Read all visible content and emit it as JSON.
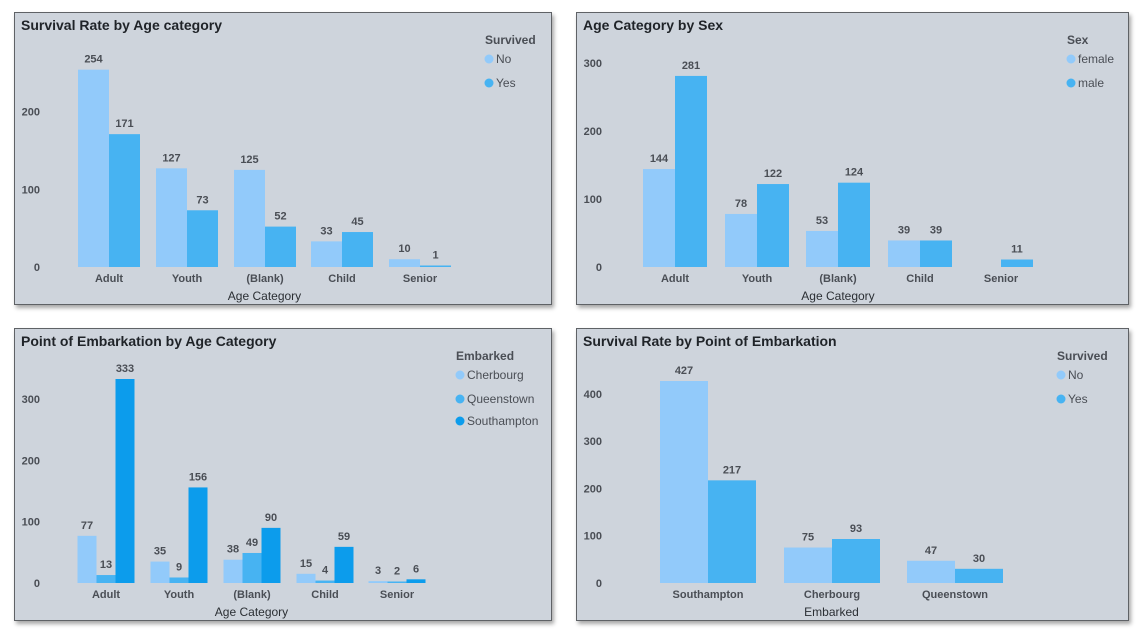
{
  "chart_data": [
    {
      "type": "bar",
      "title": "Survival Rate by Age category",
      "xlabel": "Age Category",
      "categories": [
        "Adult",
        "Youth",
        "(Blank)",
        "Child",
        "Senior"
      ],
      "series": [
        {
          "name": "No",
          "values": [
            254,
            127,
            125,
            33,
            10
          ],
          "color": "#92cafa"
        },
        {
          "name": "Yes",
          "values": [
            171,
            73,
            52,
            45,
            1
          ],
          "color": "#47b3f2"
        }
      ],
      "legend_title": "Survived",
      "yticks": [
        0,
        100,
        200
      ],
      "ylim": [
        0,
        260
      ],
      "legend": "top-right"
    },
    {
      "type": "bar",
      "title": "Age Category by Sex",
      "xlabel": "Age Category",
      "categories": [
        "Adult",
        "Youth",
        "(Blank)",
        "Child",
        "Senior"
      ],
      "series": [
        {
          "name": "female",
          "values": [
            144,
            78,
            53,
            39,
            null
          ],
          "color": "#92cafa"
        },
        {
          "name": "male",
          "values": [
            281,
            122,
            124,
            39,
            11
          ],
          "color": "#47b3f2"
        }
      ],
      "legend_title": "Sex",
      "yticks": [
        0,
        100,
        200,
        300
      ],
      "ylim": [
        0,
        300
      ],
      "legend": "top-right"
    },
    {
      "type": "bar",
      "title": "Point of Embarkation by Age Category",
      "xlabel": "Age Category",
      "categories": [
        "Adult",
        "Youth",
        "(Blank)",
        "Child",
        "Senior"
      ],
      "series": [
        {
          "name": "Cherbourg",
          "values": [
            77,
            35,
            38,
            15,
            3
          ],
          "color": "#92cafa"
        },
        {
          "name": "Queenstown",
          "values": [
            13,
            9,
            49,
            4,
            2
          ],
          "color": "#47b3f2"
        },
        {
          "name": "Southampton",
          "values": [
            333,
            156,
            90,
            59,
            6
          ],
          "color": "#0c9cec"
        }
      ],
      "legend_title": "Embarked",
      "yticks": [
        0,
        100,
        200,
        300
      ],
      "ylim": [
        0,
        333
      ],
      "legend": "top-right"
    },
    {
      "type": "bar",
      "title": "Survival Rate by Point of Embarkation",
      "xlabel": "Embarked",
      "categories": [
        "Southampton",
        "Cherbourg",
        "Queenstown"
      ],
      "series": [
        {
          "name": "No",
          "values": [
            427,
            75,
            47
          ],
          "color": "#92cafa"
        },
        {
          "name": "Yes",
          "values": [
            217,
            93,
            30
          ],
          "color": "#47b3f2"
        }
      ],
      "legend_title": "Survived",
      "yticks": [
        0,
        100,
        200,
        300,
        400
      ],
      "ylim": [
        0,
        427
      ],
      "legend": "top-right"
    }
  ]
}
